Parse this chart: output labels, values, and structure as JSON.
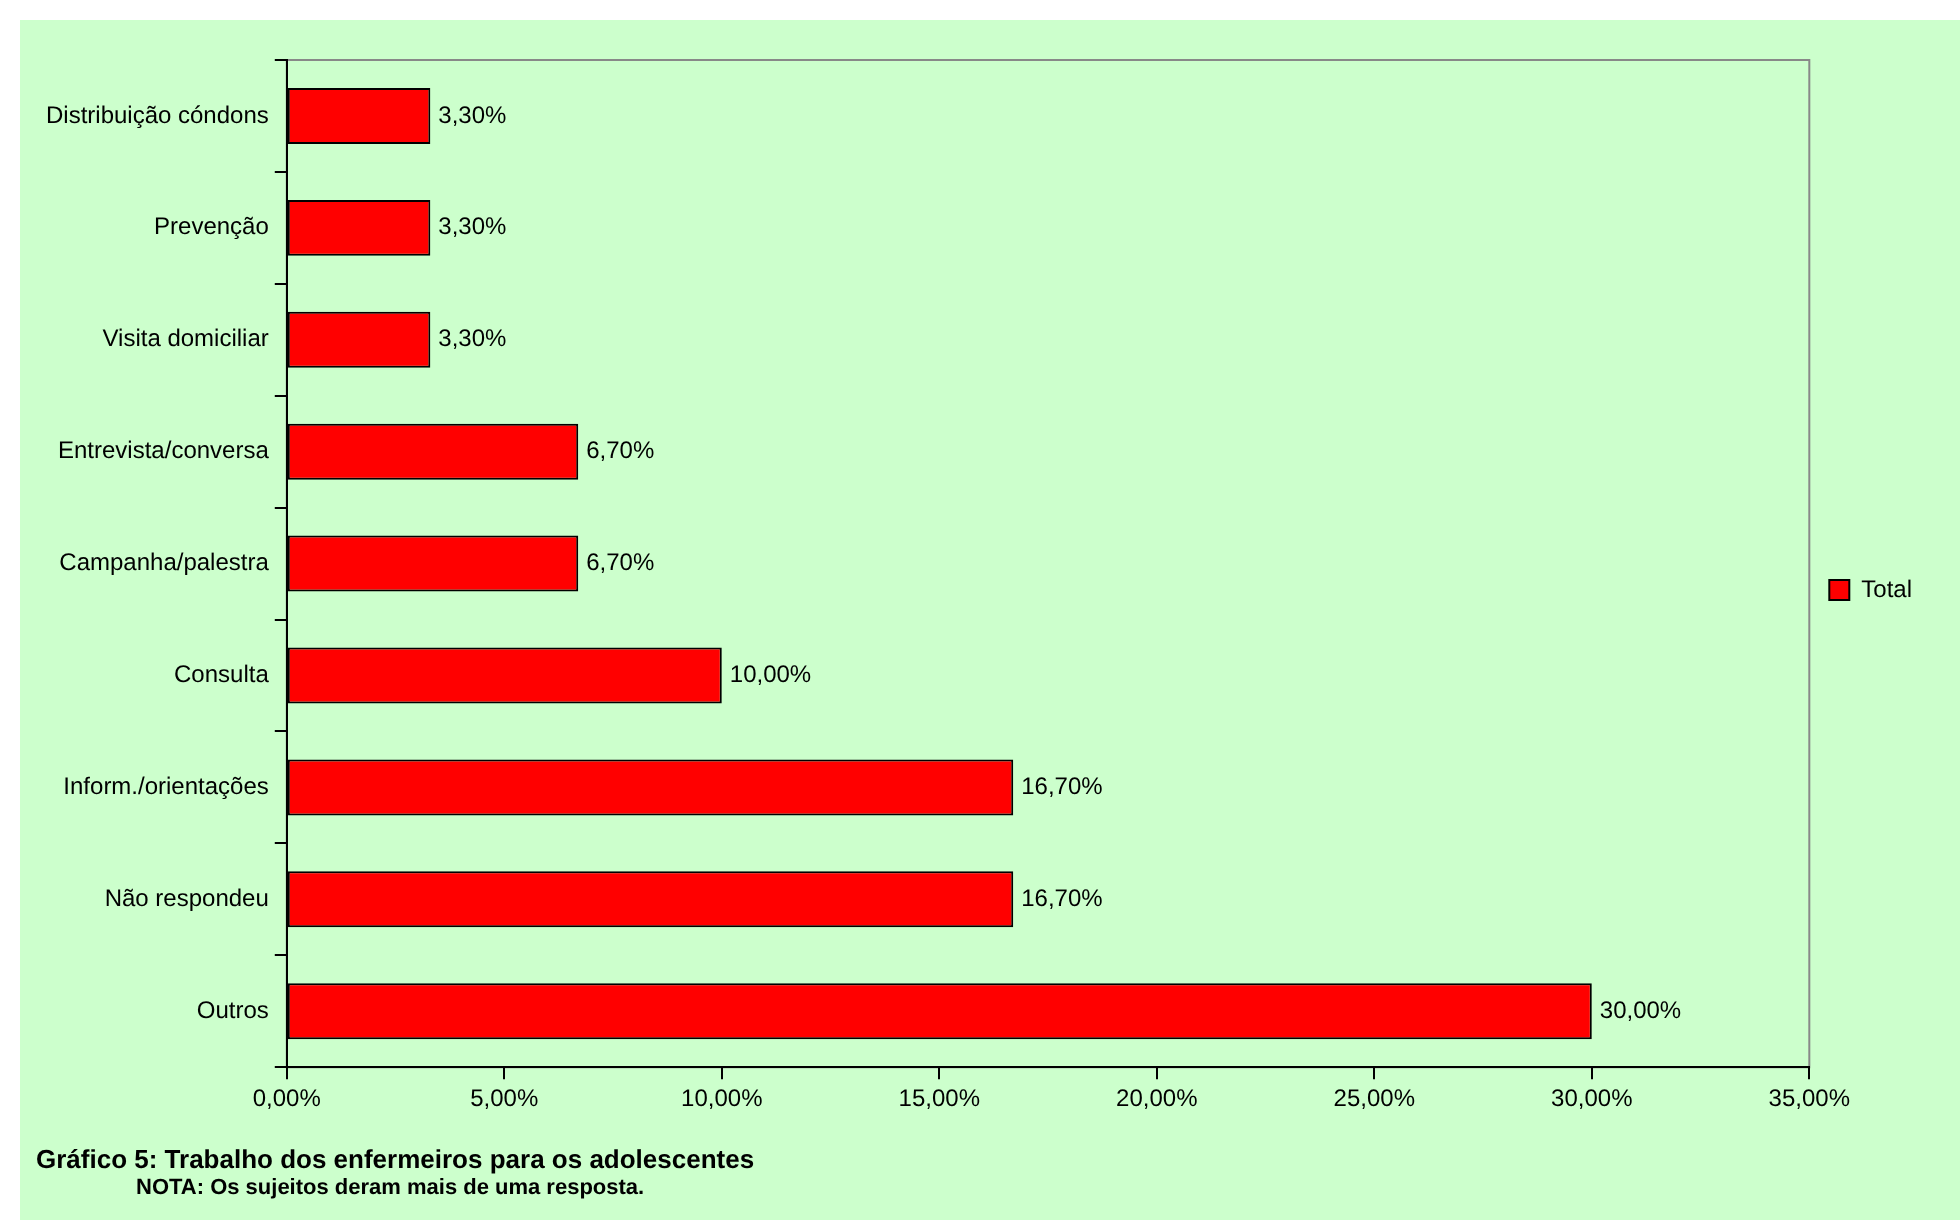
{
  "chart_data": {
    "type": "bar",
    "orientation": "horizontal",
    "title": "Gráfico 5: Trabalho dos enfermeiros para os adolescentes",
    "annotations": [
      "NOTA: Os sujeitos deram mais de uma resposta."
    ],
    "categories": [
      "Distribuição cóndons",
      "Prevenção",
      "Visita domiciliar",
      "Entrevista/conversa",
      "Campanha/palestra",
      "Consulta",
      "Inform./orientações",
      "Não respondeu",
      "Outros"
    ],
    "series": [
      {
        "name": "Total",
        "color": "#ff0000",
        "values": [
          3.3,
          3.3,
          3.3,
          6.7,
          6.7,
          10,
          16.7,
          16.7,
          30
        ],
        "value_labels": [
          "3,30%",
          "3,30%",
          "3,30%",
          "6,70%",
          "6,70%",
          "10,00%",
          "16,70%",
          "16,70%",
          "30,00%"
        ]
      }
    ],
    "xlim": [
      0,
      35
    ],
    "xticks": [
      {
        "value": 0,
        "label": "0,00%"
      },
      {
        "value": 5,
        "label": "5,00%"
      },
      {
        "value": 10,
        "label": "10,00%"
      },
      {
        "value": 15,
        "label": "15,00%"
      },
      {
        "value": 20,
        "label": "20,00%"
      },
      {
        "value": 25,
        "label": "25,00%"
      },
      {
        "value": 30,
        "label": "30,00%"
      },
      {
        "value": 35,
        "label": "35,00%"
      }
    ],
    "grid": false,
    "legend": "right"
  }
}
